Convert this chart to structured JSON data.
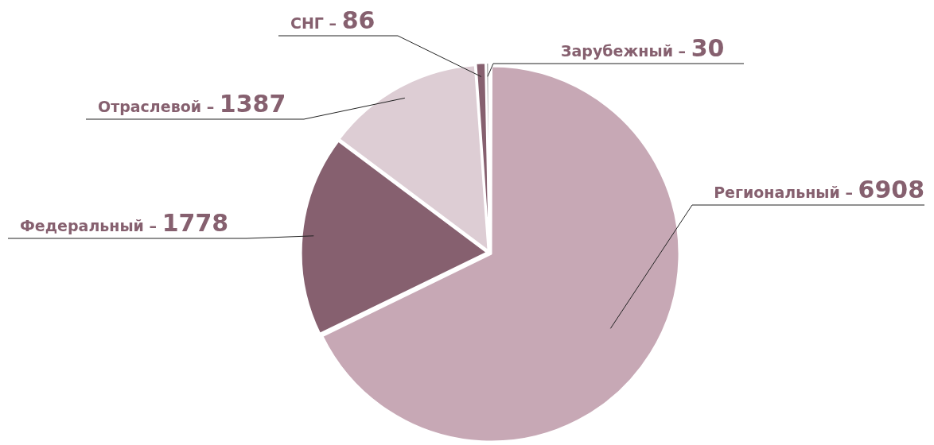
{
  "chart_data": {
    "type": "pie",
    "categories": [
      "Региональный –",
      "Федеральный –",
      "Отраслевой –",
      "СНГ –",
      "Зарубежный –"
    ],
    "values": [
      6908,
      1778,
      1387,
      86,
      30
    ],
    "colors": [
      "#c7a8b5",
      "#86606f",
      "#ddcdd4",
      "#86606f",
      "#a6a6a6"
    ],
    "data_labels": true,
    "legend": false
  }
}
